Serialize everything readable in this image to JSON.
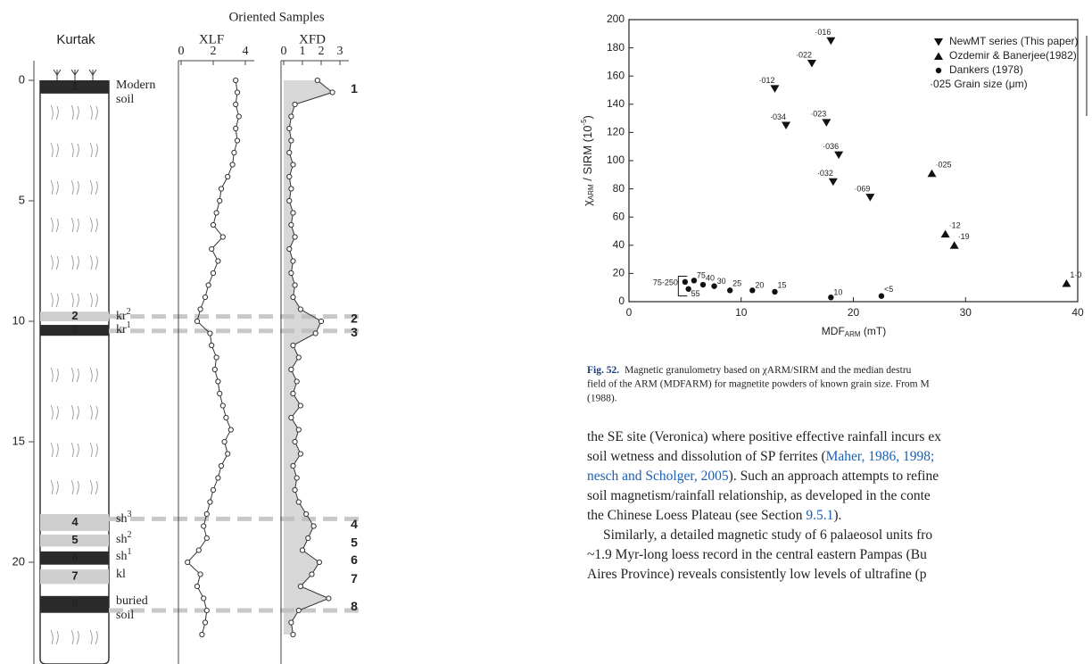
{
  "chart_data": [
    {
      "type": "depth_profile",
      "column_title": "Kurtak",
      "header": "Oriented Samples",
      "ylim": [
        0,
        24
      ],
      "yticks": [
        0,
        5,
        10,
        15,
        20
      ],
      "depth": [
        0,
        0.5,
        1,
        1.5,
        2,
        2.5,
        3,
        3.5,
        4,
        4.5,
        5,
        5.5,
        6,
        6.5,
        7,
        7.5,
        8,
        8.5,
        9,
        9.5,
        10,
        10.5,
        11,
        11.5,
        12,
        12.5,
        13,
        13.5,
        14,
        14.5,
        15,
        15.5,
        16,
        16.5,
        17,
        17.5,
        18,
        18.5,
        19,
        19.5,
        20,
        20.5,
        21,
        21.5,
        22,
        22.5,
        23
      ],
      "series": [
        {
          "name": "XLF",
          "color": "#333333",
          "xlim": [
            0,
            4
          ],
          "xticks": [
            0,
            2,
            4
          ],
          "values": [
            3.4,
            3.5,
            3.4,
            3.6,
            3.4,
            3.5,
            3.3,
            3.2,
            2.9,
            2.5,
            2.4,
            2.2,
            2.0,
            2.6,
            1.9,
            2.3,
            2.0,
            1.7,
            1.5,
            1.2,
            1.0,
            1.8,
            1.9,
            2.2,
            2.1,
            2.3,
            2.4,
            2.6,
            2.8,
            3.1,
            2.7,
            2.9,
            2.5,
            2.3,
            2.0,
            1.8,
            1.6,
            1.4,
            1.6,
            1.1,
            0.4,
            1.2,
            1.0,
            1.4,
            1.6,
            1.5,
            1.3
          ]
        },
        {
          "name": "XFD",
          "color": "#333333",
          "xlim": [
            0,
            3
          ],
          "xticks": [
            0,
            1,
            2,
            3
          ],
          "values": [
            1.8,
            2.6,
            0.6,
            0.4,
            0.3,
            0.4,
            0.3,
            0.5,
            0.3,
            0.4,
            0.3,
            0.5,
            0.4,
            0.6,
            0.3,
            0.5,
            0.4,
            0.6,
            0.5,
            0.9,
            2.0,
            1.7,
            0.5,
            0.8,
            0.4,
            0.7,
            0.5,
            0.9,
            0.4,
            0.8,
            0.6,
            0.9,
            0.5,
            0.7,
            0.6,
            0.8,
            1.2,
            1.6,
            1.3,
            1.0,
            1.9,
            1.5,
            0.9,
            2.4,
            0.8,
            0.4,
            0.5
          ]
        }
      ],
      "units": [
        {
          "label": "1",
          "top": 0,
          "bottom": 0.55,
          "shade": "#2b2b2b",
          "name": [
            "Modern",
            "soil"
          ]
        },
        {
          "label": "2",
          "top": 9.6,
          "bottom": 10.0,
          "shade": "#cfcfcf",
          "name": [
            "kr"
          ],
          "sup": "2"
        },
        {
          "label": "3",
          "top": 10.15,
          "bottom": 10.6,
          "shade": "#2b2b2b",
          "name": [
            "kr"
          ],
          "sup": "1"
        },
        {
          "label": "4",
          "top": 18.0,
          "bottom": 18.7,
          "shade": "#cfcfcf",
          "name": [
            "sh"
          ],
          "sup": "3"
        },
        {
          "label": "5",
          "top": 18.85,
          "bottom": 19.35,
          "shade": "#cfcfcf",
          "name": [
            "sh"
          ],
          "sup": "2"
        },
        {
          "label": "6",
          "top": 19.55,
          "bottom": 20.1,
          "shade": "#2b2b2b",
          "name": [
            "sh"
          ],
          "sup": "1"
        },
        {
          "label": "7",
          "top": 20.3,
          "bottom": 20.9,
          "shade": "#cfcfcf",
          "name": [
            "kl"
          ]
        },
        {
          "label": "8",
          "top": 21.4,
          "bottom": 22.1,
          "shade": "#2b2b2b",
          "name": [
            "buried",
            "soil"
          ]
        }
      ],
      "dashed_lines": [
        9.8,
        10.4,
        18.2,
        22.0
      ]
    },
    {
      "type": "scatter",
      "xlim": [
        0,
        40
      ],
      "xticks": [
        0,
        10,
        20,
        30,
        40
      ],
      "ylim": [
        0,
        200
      ],
      "yticks": [
        0,
        20,
        40,
        60,
        80,
        100,
        120,
        140,
        160,
        180,
        200
      ],
      "x_label": {
        "main": "MDF",
        "sub": "ARM",
        "rest": " (mT)"
      },
      "y_label": {
        "main": "χ",
        "sub": "ARM",
        "rest": " / SIRM (10",
        "sup": "-5",
        "end": ")"
      },
      "legend_note": "·025 Grain size (μm)",
      "series": [
        {
          "name": "NewMT series (This paper)",
          "marker": "triangle-down",
          "x": [
            18,
            16.3,
            13,
            14,
            17.6,
            18.7,
            18.2,
            21.5
          ],
          "values": [
            185,
            169,
            151,
            125,
            127,
            104,
            85,
            74
          ],
          "point_labels": [
            "·016",
            "·022",
            "·012",
            "·034",
            "·023",
            "·036",
            "·032",
            "·069"
          ]
        },
        {
          "name": "Ozdemir & Banerjee(1982)",
          "marker": "triangle-up",
          "x": [
            27,
            28.2,
            29,
            39
          ],
          "values": [
            91,
            48,
            40,
            13
          ],
          "point_labels": [
            "·025",
            "·12",
            "·19",
            "1·0"
          ]
        },
        {
          "name": "Dankers (1978)",
          "marker": "circle",
          "x": [
            5,
            5.3,
            5.8,
            6.6,
            7.6,
            9,
            11,
            13,
            18,
            22.5
          ],
          "values": [
            14,
            9,
            15,
            12,
            11,
            8,
            8,
            7,
            3,
            4
          ],
          "point_labels": [
            "75-250",
            "55",
            "75",
            "40",
            "30",
            "25",
            "20",
            "15",
            "10",
            "<5"
          ]
        }
      ]
    }
  ],
  "caption": {
    "lead": "Fig. 52.",
    "lines": [
      "Magnetic granulometry based on χARM/SIRM and the median destru",
      "field of the ARM (MDFARM) for magnetite powders of known grain size. From M",
      "(1988)."
    ]
  },
  "body": [
    [
      {
        "text": "the SE site (Veronica) where positive effective rainfall incurs ex"
      }
    ],
    [
      {
        "text": "soil wetness and dissolution of SP ferrites ("
      },
      {
        "text": "Maher, 1986, 1998;",
        "link": true
      }
    ],
    [
      {
        "text": "nesch and Scholger, 2005",
        "link": true
      },
      {
        "text": "). Such an approach attempts to refine"
      }
    ],
    [
      {
        "text": "soil magnetism/rainfall relationship, as developed in the conte"
      }
    ],
    [
      {
        "text": "the Chinese Loess Plateau (see Section "
      },
      {
        "text": "9.5.1",
        "link": true
      },
      {
        "text": ")."
      }
    ],
    [
      {
        "text": "Similarly, a detailed magnetic study of 6 palaeosol units fro"
      }
    ],
    [
      {
        "text": "~1.9 Myr-long loess record in the central eastern Pampas (Bu"
      }
    ],
    [
      {
        "text": "Aires Province) reveals consistently low levels of ultrafine (p"
      }
    ]
  ]
}
